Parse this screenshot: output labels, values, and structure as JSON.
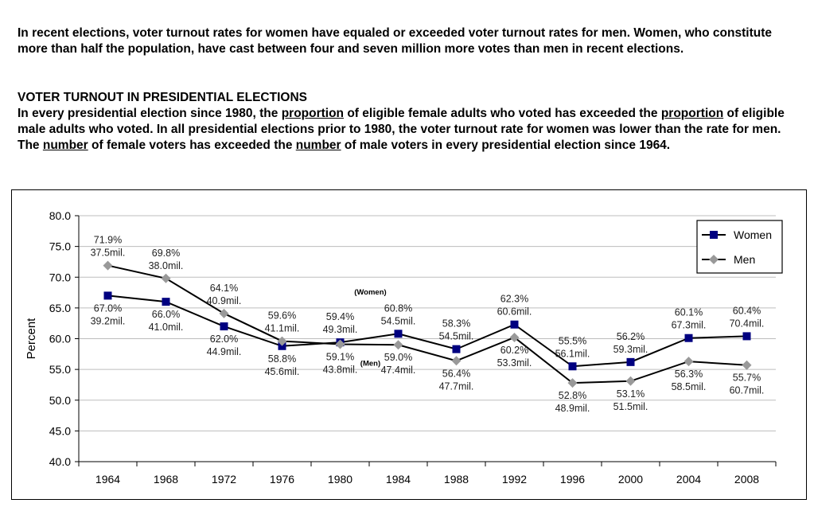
{
  "intro_text": "In recent elections, voter turnout rates for women have equaled or exceeded voter turnout rates for men. Women, who constitute more than half the population, have cast between four and seven million more votes than men in recent elections.",
  "section": {
    "title": "VOTER TURNOUT IN PRESIDENTIAL ELECTIONS",
    "body_parts": [
      "In every presidential election since 1980, the ",
      "proportion",
      " of eligible female adults who voted has exceeded the ",
      "proportion",
      " of eligible male adults who voted. In all presidential elections prior to 1980, the voter turnout rate for women was lower than the rate for men. The ",
      "number",
      " of female voters has exceeded the ",
      "number",
      " of male voters in every presidential election since 1964."
    ]
  },
  "chart_data": {
    "type": "line",
    "ylabel": "Percent",
    "ylim": [
      40,
      80
    ],
    "yticks": [
      "40.0",
      "45.0",
      "50.0",
      "55.0",
      "60.0",
      "65.0",
      "70.0",
      "75.0",
      "80.0"
    ],
    "grid": true,
    "legend_position": "top-right",
    "categories": [
      "1964",
      "1968",
      "1972",
      "1976",
      "1980",
      "1984",
      "1988",
      "1992",
      "1996",
      "2000",
      "2004",
      "2008"
    ],
    "series": [
      {
        "name": "Women",
        "color": "#000080",
        "marker": "square",
        "values": [
          67.0,
          66.0,
          62.0,
          58.8,
          59.4,
          60.8,
          58.3,
          62.3,
          55.5,
          56.2,
          60.1,
          60.4
        ],
        "pct_labels": [
          "67.0%",
          "66.0%",
          "62.0%",
          "58.8%",
          "59.4%",
          "60.8%",
          "58.3%",
          "62.3%",
          "55.5%",
          "56.2%",
          "60.1%",
          "60.4%"
        ],
        "vote_labels": [
          "39.2mil.",
          "41.0mil.",
          "44.9mil.",
          "45.6mil.",
          "49.3mil.",
          "54.5mil.",
          "54.5mil.",
          "60.6mil.",
          "56.1mil.",
          "59.3mil.",
          "67.3mil.",
          "70.4mil."
        ]
      },
      {
        "name": "Men",
        "color": "#999999",
        "marker": "diamond",
        "values": [
          71.9,
          69.8,
          64.1,
          59.6,
          59.1,
          59.0,
          56.4,
          60.2,
          52.8,
          53.1,
          56.3,
          55.7
        ],
        "pct_labels": [
          "71.9%",
          "69.8%",
          "64.1%",
          "59.6%",
          "59.1%",
          "59.0%",
          "56.4%",
          "60.2%",
          "52.8%",
          "53.1%",
          "56.3%",
          "55.7%"
        ],
        "vote_labels": [
          "37.5mil.",
          "38.0mil.",
          "40.9mil.",
          "41.1mil.",
          "43.8mil.",
          "47.4mil.",
          "47.7mil.",
          "53.3mil.",
          "48.9mil.",
          "51.5mil.",
          "58.5mil.",
          "60.7mil."
        ]
      }
    ],
    "annotations": [
      "(Women)",
      "(Men)"
    ]
  }
}
